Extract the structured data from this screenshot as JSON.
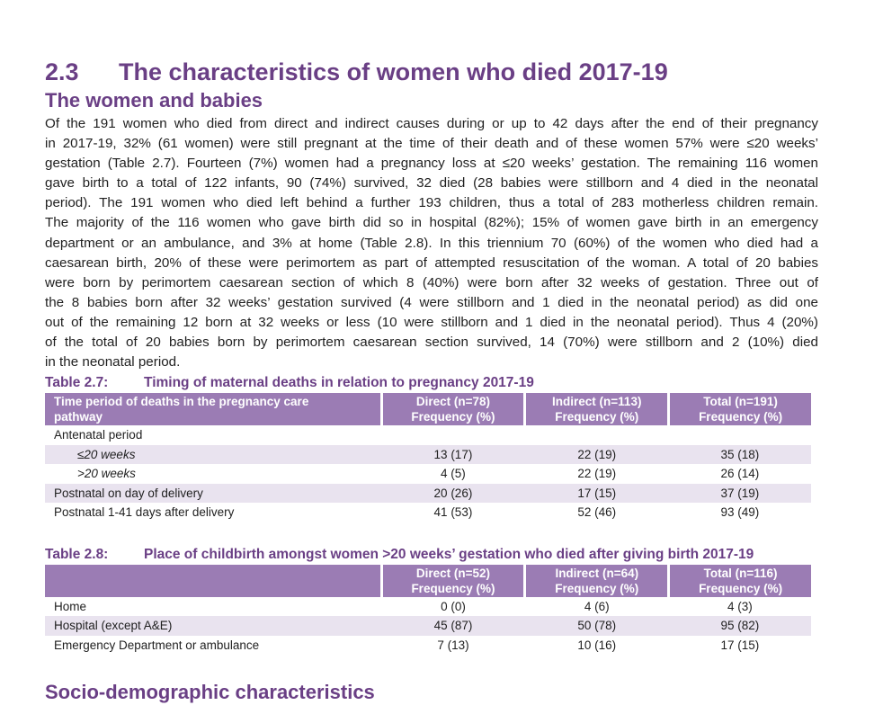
{
  "section": {
    "number": "2.3",
    "title": "The characteristics of women who died 2017-19"
  },
  "subsection_title": "The women and babies",
  "paragraph_lines": [
    "Of the 191 women who died from direct and indirect causes during or up to 42 days after the end of their pregnancy",
    "in 2017-19, 32% (61 women) were still pregnant at the time of their death and of these women 57% were ≤20 weeks’",
    "gestation (Table 2.7). Fourteen (7%) women had a pregnancy loss at ≤20 weeks’ gestation. The remaining 116 women",
    "gave birth to a total of 122 infants, 90 (74%) survived, 32 died (28 babies were stillborn and 4 died in the neonatal",
    "period). The 191 women who died left behind a further 193 children, thus a total of 283 motherless children remain.",
    "The majority of the 116 women who gave birth did so in hospital (82%); 15% of women gave birth in an emergency",
    "department or an ambulance, and 3% at home (Table 2.8). In this triennium 70 (60%) of the women who died had a",
    "caesarean birth, 20% of these were perimortem as part of attempted resuscitation of the woman. A total of 20 babies",
    "were born by perimortem caesarean section of which 8 (40%) were born after 32 weeks of gestation. Three out of",
    "the 8 babies born after 32 weeks’ gestation survived (4 were stillborn and 1 died in the neonatal period) as did one",
    "out of the remaining 12 born at 32 weeks or less (10 were stillborn and 1 died in the neonatal period).  Thus 4 (20%)",
    "of the total of 20 babies born by perimortem caesarean section survived, 14 (70%) were stillborn and 2 (10%) died",
    "in the neonatal period."
  ],
  "table_2_7": {
    "number": "Table 2.7:",
    "title": "Timing of maternal deaths in relation to pregnancy 2017-19",
    "header": {
      "col1_line1": "Time period of deaths in the pregnancy care",
      "col1_line2": "pathway",
      "direct_line1": "Direct (n=78)",
      "direct_line2": "Frequency (%)",
      "indirect_line1": "Indirect (n=113)",
      "indirect_line2": "Frequency (%)",
      "total_line1": "Total (n=191)",
      "total_line2": "Frequency (%)"
    },
    "rows": [
      {
        "label": "Antenatal period",
        "direct": "",
        "indirect": "",
        "total": ""
      },
      {
        "label": "≤20 weeks",
        "direct": "13 (17)",
        "indirect": "22 (19)",
        "total": "35 (18)"
      },
      {
        "label": ">20 weeks",
        "direct": "4 (5)",
        "indirect": "22 (19)",
        "total": "26 (14)"
      },
      {
        "label": "Postnatal on day of delivery",
        "direct": "20 (26)",
        "indirect": "17 (15)",
        "total": "37 (19)"
      },
      {
        "label": "Postnatal 1-41 days after delivery",
        "direct": "41 (53)",
        "indirect": "52 (46)",
        "total": "93 (49)"
      }
    ]
  },
  "table_2_8": {
    "number": "Table 2.8:",
    "title": "Place of childbirth amongst women >20 weeks’ gestation who died after giving birth 2017-19",
    "header": {
      "direct_line1": "Direct (n=52)",
      "direct_line2": "Frequency (%)",
      "indirect_line1": "Indirect (n=64)",
      "indirect_line2": "Frequency (%)",
      "total_line1": "Total (n=116)",
      "total_line2": "Frequency (%)"
    },
    "rows": [
      {
        "label": "Home",
        "direct": "0 (0)",
        "indirect": "4 (6)",
        "total": "4 (3)"
      },
      {
        "label": "Hospital (except A&E)",
        "direct": "45 (87)",
        "indirect": "50 (78)",
        "total": "95 (82)"
      },
      {
        "label": "Emergency Department or ambulance",
        "direct": "7 (13)",
        "indirect": "10 (16)",
        "total": "17 (15)"
      }
    ]
  },
  "next_section_title": "Socio-demographic characteristics",
  "colors": {
    "heading_purple": "#6a3f85",
    "table_header": "#9b7cb4",
    "row_shade": "#e9e3ef"
  }
}
